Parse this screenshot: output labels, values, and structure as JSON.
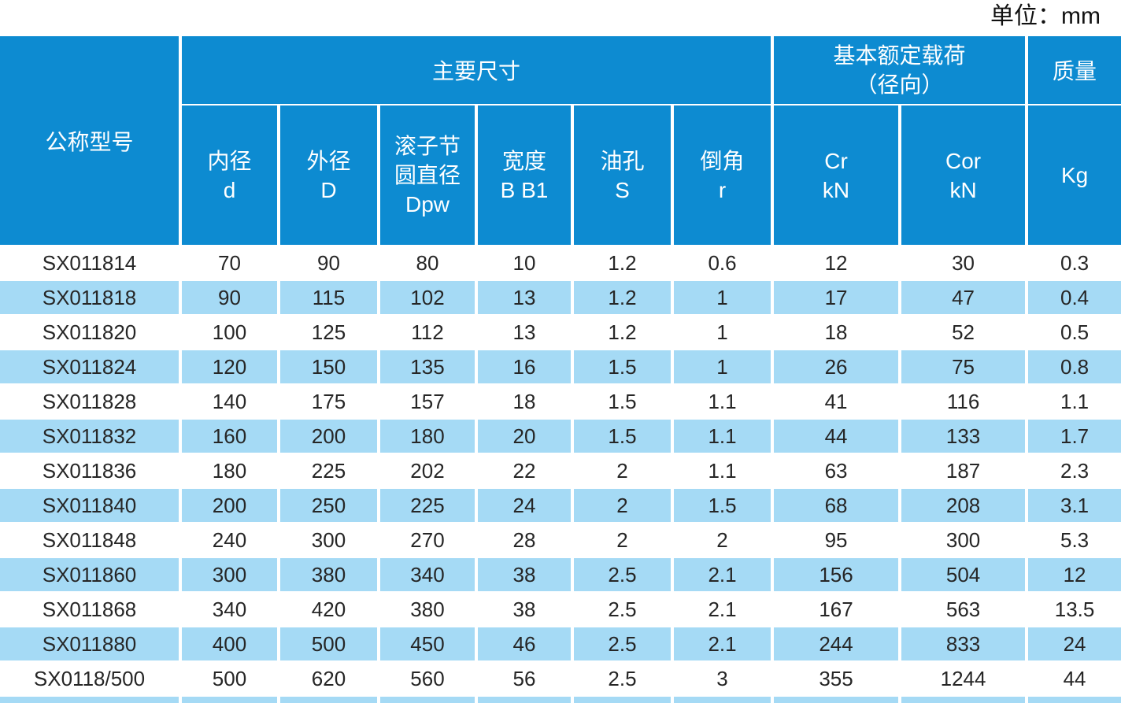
{
  "unit_label": "单位：mm",
  "colors": {
    "header_blue": "#0D8BD1",
    "row_alt_blue": "#A5DAF5",
    "data_text": "#262626",
    "header_text": "#FFFFFF"
  },
  "table": {
    "group_headers": {
      "model": "公称型号",
      "main_dimensions": "主要尺寸",
      "basic_load": "基本额定载荷",
      "basic_load_sub": "（径向）",
      "mass": "质量"
    },
    "sub_headers": [
      {
        "line1": "内径",
        "line2": "",
        "symbol": "d"
      },
      {
        "line1": "外径",
        "line2": "",
        "symbol": "D"
      },
      {
        "line1": "滚子节",
        "line2": "圆直径",
        "symbol": "Dpw"
      },
      {
        "line1": "宽度",
        "line2": "",
        "symbol": "B B1"
      },
      {
        "line1": "油孔",
        "line2": "",
        "symbol": "S"
      },
      {
        "line1": "倒角",
        "line2": "",
        "symbol": "r"
      },
      {
        "line1": "Cr",
        "line2": "",
        "symbol": "kN"
      },
      {
        "line1": "Cor",
        "line2": "",
        "symbol": "kN"
      },
      {
        "line1": "Kg",
        "line2": "",
        "symbol": ""
      }
    ],
    "rows": [
      [
        "SX011814",
        "70",
        "90",
        "80",
        "10",
        "1.2",
        "0.6",
        "12",
        "30",
        "0.3"
      ],
      [
        "SX011818",
        "90",
        "115",
        "102",
        "13",
        "1.2",
        "1",
        "17",
        "47",
        "0.4"
      ],
      [
        "SX011820",
        "100",
        "125",
        "112",
        "13",
        "1.2",
        "1",
        "18",
        "52",
        "0.5"
      ],
      [
        "SX011824",
        "120",
        "150",
        "135",
        "16",
        "1.5",
        "1",
        "26",
        "75",
        "0.8"
      ],
      [
        "SX011828",
        "140",
        "175",
        "157",
        "18",
        "1.5",
        "1.1",
        "41",
        "116",
        "1.1"
      ],
      [
        "SX011832",
        "160",
        "200",
        "180",
        "20",
        "1.5",
        "1.1",
        "44",
        "133",
        "1.7"
      ],
      [
        "SX011836",
        "180",
        "225",
        "202",
        "22",
        "2",
        "1.1",
        "63",
        "187",
        "2.3"
      ],
      [
        "SX011840",
        "200",
        "250",
        "225",
        "24",
        "2",
        "1.5",
        "68",
        "208",
        "3.1"
      ],
      [
        "SX011848",
        "240",
        "300",
        "270",
        "28",
        "2",
        "2",
        "95",
        "300",
        "5.3"
      ],
      [
        "SX011860",
        "300",
        "380",
        "340",
        "38",
        "2.5",
        "2.1",
        "156",
        "504",
        "12"
      ],
      [
        "SX011868",
        "340",
        "420",
        "380",
        "38",
        "2.5",
        "2.1",
        "167",
        "563",
        "13.5"
      ],
      [
        "SX011880",
        "400",
        "500",
        "450",
        "46",
        "2.5",
        "2.1",
        "244",
        "833",
        "24"
      ],
      [
        "SX0118/500",
        "500",
        "620",
        "560",
        "56",
        "2.5",
        "3",
        "355",
        "1244",
        "44"
      ]
    ]
  }
}
